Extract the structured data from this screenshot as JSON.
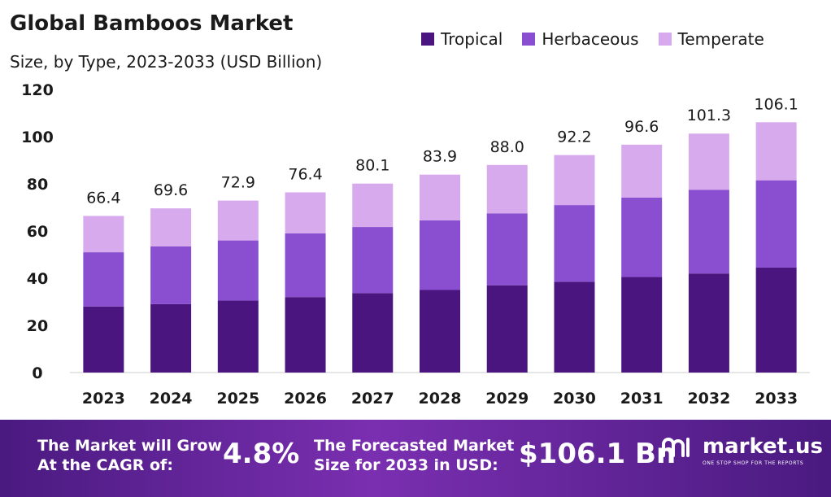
{
  "chart_data": {
    "type": "bar",
    "stacked": true,
    "title": "Global Bamboos Market",
    "subtitle": "Size, by Type, 2023-2033 (USD Billion)",
    "xlabel": "",
    "ylabel": "",
    "ylim": [
      0,
      120
    ],
    "yticks": [
      0,
      20,
      40,
      60,
      80,
      100,
      120
    ],
    "categories": [
      "2023",
      "2024",
      "2025",
      "2026",
      "2027",
      "2028",
      "2029",
      "2030",
      "2031",
      "2032",
      "2033"
    ],
    "series": [
      {
        "name": "Tropical",
        "color": "#4b1580",
        "values": [
          28,
          29,
          30.5,
          32,
          33.7,
          35,
          37,
          38.5,
          40.5,
          42,
          44.5
        ]
      },
      {
        "name": "Herbaceous",
        "color": "#8a4fd0",
        "values": [
          23,
          24.5,
          25.5,
          27,
          28,
          29.5,
          30.5,
          32.5,
          33.7,
          35.5,
          37
        ]
      },
      {
        "name": "Temperate",
        "color": "#d7aaee",
        "values": [
          15.4,
          16.1,
          16.9,
          17.4,
          18.4,
          19.4,
          20.5,
          21.2,
          22.4,
          23.8,
          24.6
        ]
      }
    ],
    "totals": [
      "66.4",
      "69.6",
      "72.9",
      "76.4",
      "80.1",
      "83.9",
      "88.0",
      "92.2",
      "96.6",
      "101.3",
      "106.1"
    ],
    "legend_position": "top-right",
    "grid": false
  },
  "footer": {
    "cagr_label_line1": "The Market will Grow",
    "cagr_label_line2": "At the CAGR of:",
    "cagr_value": "4.8%",
    "forecast_label_line1": "The Forecasted Market",
    "forecast_label_line2": "Size for 2033 in USD:",
    "forecast_value": "$106.1 Bn",
    "brand_name": "market.us",
    "brand_tagline": "ONE STOP SHOP FOR THE REPORTS",
    "brand_icon": "market-us-logo-icon"
  }
}
